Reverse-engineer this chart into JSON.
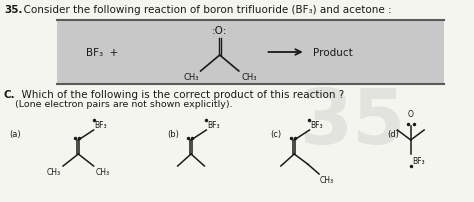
{
  "title_num": "35.",
  "title_text": "  Consider the following reaction of boron trifluoride (BF₃) and acetone :",
  "box_bg": "#c8c8c8",
  "box_border": "#5a5a5a",
  "reaction_bf3": "BF₃  +",
  "reaction_product": "Product",
  "section_c": "C.",
  "section_c_text": "  Which of the following is the correct product of this reaction ?",
  "section_c_sub": "(Lone electron pairs are not shown explicitly).",
  "label_a": "(a)",
  "label_b": "(b)",
  "label_c": "(c)",
  "label_d": "(d)",
  "bg_color": "#f5f5f0",
  "text_color": "#1a1a1a",
  "structure_color": "#1a1a1a",
  "watermark_color": "#d0d0d0",
  "fig_w": 4.74,
  "fig_h": 2.03,
  "dpi": 100
}
